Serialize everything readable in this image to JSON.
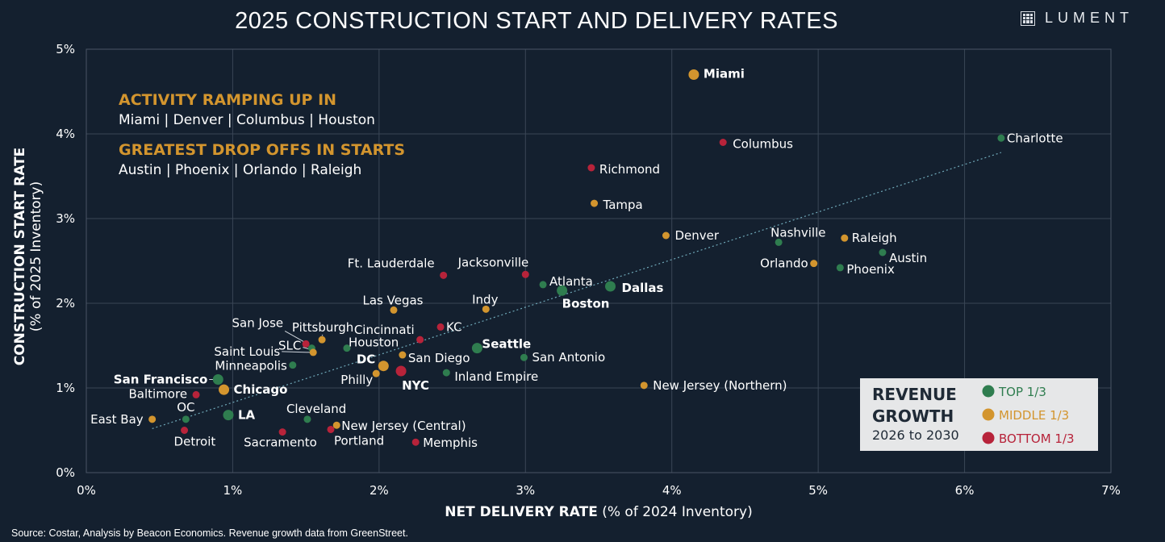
{
  "header": {
    "title": "2025 CONSTRUCTION START AND DELIVERY RATES",
    "logo_text": "LUMENT"
  },
  "annotations": {
    "ramp_heading": "ACTIVITY RAMPING UP IN",
    "ramp_cities": "Miami | Denver | Columbus | Houston",
    "drop_heading": "GREATEST DROP OFFS IN STARTS",
    "drop_cities": "Austin | Phoenix | Orlando | Raleigh"
  },
  "legend": {
    "title_line1": "REVENUE",
    "title_line2": "GROWTH",
    "subtitle": "2026 to 2030",
    "items": [
      {
        "label": "TOP 1/3",
        "color": "#2f7d4f"
      },
      {
        "label": "MIDDLE 1/3",
        "color": "#d3952e"
      },
      {
        "label": "BOTTOM 1/3",
        "color": "#b7233a"
      }
    ]
  },
  "source": "Source: Costar, Analysis by Beacon Economics. Revenue growth data from GreenStreet.",
  "chart_data": {
    "type": "scatter",
    "xlabel_bold": "NET DELIVERY RATE",
    "xlabel_rest": " (% of 2024 Inventory)",
    "ylabel_bold": "CONSTRUCTION START RATE",
    "ylabel_rest": "(% of 2025 Inventory)",
    "xlim": [
      0,
      7
    ],
    "ylim": [
      0,
      5
    ],
    "x_ticks": [
      "0%",
      "1%",
      "2%",
      "3%",
      "4%",
      "5%",
      "6%",
      "7%"
    ],
    "y_ticks": [
      "0%",
      "1%",
      "2%",
      "3%",
      "4%",
      "5%"
    ],
    "grid": true,
    "trendline": {
      "x": [
        0.45,
        6.25
      ],
      "y": [
        0.52,
        3.78
      ]
    },
    "groups": {
      "top": "#2f7d4f",
      "middle": "#d3952e",
      "bottom": "#b7233a"
    },
    "points": [
      {
        "name": "Miami",
        "x": 4.15,
        "y": 4.7,
        "group": "middle",
        "major": true
      },
      {
        "name": "Charlotte",
        "x": 6.25,
        "y": 3.95,
        "group": "top",
        "major": false
      },
      {
        "name": "Columbus",
        "x": 4.35,
        "y": 3.9,
        "group": "bottom",
        "major": false
      },
      {
        "name": "Richmond",
        "x": 3.45,
        "y": 3.6,
        "group": "bottom",
        "major": false
      },
      {
        "name": "Tampa",
        "x": 3.47,
        "y": 3.18,
        "group": "middle",
        "major": false
      },
      {
        "name": "Denver",
        "x": 3.96,
        "y": 2.8,
        "group": "middle",
        "major": false
      },
      {
        "name": "Nashville",
        "x": 4.73,
        "y": 2.72,
        "group": "top",
        "major": false
      },
      {
        "name": "Raleigh",
        "x": 5.18,
        "y": 2.77,
        "group": "middle",
        "major": false
      },
      {
        "name": "Austin",
        "x": 5.44,
        "y": 2.6,
        "group": "top",
        "major": false
      },
      {
        "name": "Orlando",
        "x": 4.97,
        "y": 2.47,
        "group": "middle",
        "major": false
      },
      {
        "name": "Phoenix",
        "x": 5.15,
        "y": 2.42,
        "group": "top",
        "major": false
      },
      {
        "name": "Ft. Lauderdale",
        "x": 2.44,
        "y": 2.33,
        "group": "bottom",
        "major": false
      },
      {
        "name": "Jacksonville",
        "x": 3.0,
        "y": 2.34,
        "group": "bottom",
        "major": false
      },
      {
        "name": "Atlanta",
        "x": 3.12,
        "y": 2.22,
        "group": "top",
        "major": false
      },
      {
        "name": "Boston",
        "x": 3.25,
        "y": 2.15,
        "group": "top",
        "major": true
      },
      {
        "name": "Dallas",
        "x": 3.58,
        "y": 2.2,
        "group": "top",
        "major": true
      },
      {
        "name": "Indy",
        "x": 2.73,
        "y": 1.93,
        "group": "middle",
        "major": false
      },
      {
        "name": "Las Vegas",
        "x": 2.1,
        "y": 1.92,
        "group": "middle",
        "major": false
      },
      {
        "name": "KC",
        "x": 2.42,
        "y": 1.72,
        "group": "bottom",
        "major": false
      },
      {
        "name": "Cincinnati",
        "x": 2.28,
        "y": 1.57,
        "group": "bottom",
        "major": false
      },
      {
        "name": "Pittsburgh",
        "x": 1.61,
        "y": 1.57,
        "group": "middle",
        "major": false
      },
      {
        "name": "San Jose",
        "x": 1.5,
        "y": 1.52,
        "group": "bottom",
        "major": false
      },
      {
        "name": "SLC",
        "x": 1.54,
        "y": 1.47,
        "group": "top",
        "major": false
      },
      {
        "name": "Houston",
        "x": 1.78,
        "y": 1.47,
        "group": "top",
        "major": false
      },
      {
        "name": "Saint Louis",
        "x": 1.55,
        "y": 1.42,
        "group": "middle",
        "major": false
      },
      {
        "name": "Seattle",
        "x": 2.67,
        "y": 1.47,
        "group": "top",
        "major": true
      },
      {
        "name": "San Diego",
        "x": 2.16,
        "y": 1.39,
        "group": "middle",
        "major": false
      },
      {
        "name": "San Antonio",
        "x": 2.99,
        "y": 1.36,
        "group": "top",
        "major": false
      },
      {
        "name": "Minneapolis",
        "x": 1.41,
        "y": 1.27,
        "group": "top",
        "major": false
      },
      {
        "name": "DC",
        "x": 2.03,
        "y": 1.26,
        "group": "middle",
        "major": true
      },
      {
        "name": "Philly",
        "x": 1.98,
        "y": 1.17,
        "group": "middle",
        "major": false
      },
      {
        "name": "NYC",
        "x": 2.15,
        "y": 1.2,
        "group": "bottom",
        "major": true
      },
      {
        "name": "Inland Empire",
        "x": 2.46,
        "y": 1.18,
        "group": "top",
        "major": false
      },
      {
        "name": "New Jersey (Northern)",
        "x": 3.81,
        "y": 1.03,
        "group": "middle",
        "major": false
      },
      {
        "name": "San Francisco",
        "x": 0.9,
        "y": 1.1,
        "group": "top",
        "major": true
      },
      {
        "name": "Chicago",
        "x": 0.94,
        "y": 0.98,
        "group": "middle",
        "major": true
      },
      {
        "name": "Baltimore",
        "x": 0.75,
        "y": 0.92,
        "group": "bottom",
        "major": false
      },
      {
        "name": "LA",
        "x": 0.97,
        "y": 0.68,
        "group": "top",
        "major": true
      },
      {
        "name": "OC",
        "x": 0.68,
        "y": 0.63,
        "group": "top",
        "major": false
      },
      {
        "name": "East Bay",
        "x": 0.45,
        "y": 0.63,
        "group": "middle",
        "major": false
      },
      {
        "name": "Detroit",
        "x": 0.67,
        "y": 0.5,
        "group": "bottom",
        "major": false
      },
      {
        "name": "Cleveland",
        "x": 1.51,
        "y": 0.63,
        "group": "top",
        "major": false
      },
      {
        "name": "New Jersey (Central)",
        "x": 1.71,
        "y": 0.56,
        "group": "middle",
        "major": false
      },
      {
        "name": "Portland",
        "x": 1.67,
        "y": 0.51,
        "group": "bottom",
        "major": false
      },
      {
        "name": "Sacramento",
        "x": 1.34,
        "y": 0.48,
        "group": "bottom",
        "major": false
      },
      {
        "name": "Memphis",
        "x": 2.25,
        "y": 0.36,
        "group": "bottom",
        "major": false
      }
    ]
  }
}
